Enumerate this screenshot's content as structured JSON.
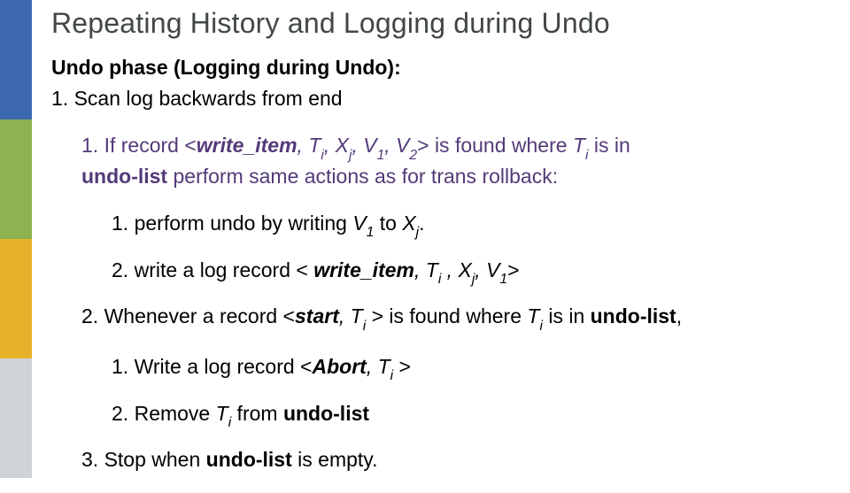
{
  "sidebar_colors": [
    "#3c68ae",
    "#8db24f",
    "#e8b12a",
    "#cfd3d6"
  ],
  "title": {
    "text": "Repeating History and Logging during Undo",
    "color": "#414649"
  },
  "subtitle": "Undo phase (Logging during Undo):",
  "step1": {
    "num": "1.",
    "text": "Scan log backwards from end"
  },
  "step1_1": {
    "num": "1.",
    "pre": " If record <",
    "wi": "write_item",
    "mid1": ", ",
    "Ti": "T",
    "Ti_sub": "i",
    "c1": ", ",
    "Xj": "X",
    "Xj_sub": "j",
    "c2": ",  ",
    "V1": "V",
    "V1_sub": "1",
    "c3": ",  ",
    "V2": "V",
    "V2_sub": "2",
    "post1": "> is found where ",
    "post2": " is in ",
    "undolist": "undo-list",
    "post3": " perform same actions as for trans rollback:"
  },
  "step1_1_1": {
    "num": "1.",
    "pre": " perform undo by writing ",
    "V1": "V",
    "V1_sub": "1",
    "mid": " to ",
    "Xj": "X",
    "Xj_sub": "j",
    "end": "."
  },
  "step1_1_2": {
    "num": "2.",
    "pre": "write a log record < ",
    "wi": "write_item",
    "c1": ", ",
    "Ti": "T",
    "Ti_sub": "i",
    "c2": " , ",
    "Xj": "X",
    "Xj_sub": "j",
    "c3": ",  ",
    "V1": "V",
    "V1_sub": "1",
    "post": ">"
  },
  "step1_2": {
    "num": "2.",
    "pre": "Whenever a record <",
    "start": "start",
    "c1": ", ",
    "Ti": "T",
    "Ti_sub": "i",
    "mid": " > is found where ",
    "post": " is in ",
    "undolist": "undo-list",
    "end": ","
  },
  "step1_2_1": {
    "num": "1.",
    "pre": "Write a log record <",
    "abort": "Abort",
    "c1": ", ",
    "Ti": "T",
    "Ti_sub": "i",
    "post": "  >"
  },
  "step1_2_2": {
    "num": "2.",
    "pre": "Remove ",
    "Ti": "T",
    "Ti_sub": "i",
    "mid": " from ",
    "undolist": "undo-list"
  },
  "step1_3": {
    "num": "3.",
    "pre": "Stop when ",
    "undolist": "undo-list",
    "post": " is empty."
  }
}
